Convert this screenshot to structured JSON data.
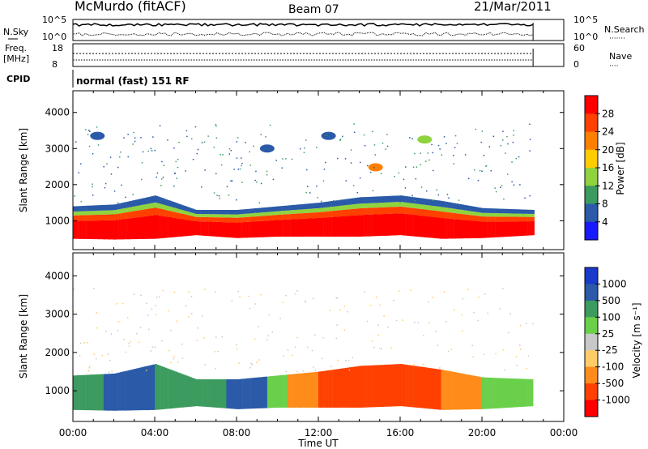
{
  "header": {
    "station": "McMurdo (fitACF)",
    "beam": "Beam 07",
    "date": "21/Mar/2011"
  },
  "noise_panel": {
    "left_label": "N.Sky",
    "right_label": "N.Search",
    "right_label_line": "·······",
    "left_ticks": [
      "10^5",
      "10^0"
    ],
    "right_ticks": [
      "10^5",
      "10^0"
    ]
  },
  "freq_panel": {
    "left_label_line1": "Freq.",
    "left_label_line2": "[MHz]",
    "left_ticks": [
      "18",
      "8"
    ],
    "right_label": "Nave",
    "right_label_line": "····",
    "right_ticks": [
      "60",
      "0"
    ]
  },
  "cpid": {
    "label": "CPID",
    "value": "normal (fast) 151 RF"
  },
  "chart_data": [
    {
      "type": "heatmap",
      "panel": "power",
      "xlabel": "Time UT",
      "ylabel": "Slant Range [km]",
      "xlim": [
        0,
        24
      ],
      "ylim": [
        200,
        4600
      ],
      "x_ticks": [
        "00:00",
        "04:00",
        "08:00",
        "12:00",
        "16:00",
        "20:00",
        "00:00"
      ],
      "y_ticks": [
        "1000",
        "2000",
        "3000",
        "4000"
      ],
      "colorbar": {
        "label": "Power [dB]",
        "ticks": [
          "28",
          "24",
          "20",
          "16",
          "12",
          "8",
          "4"
        ],
        "colors": [
          "#ff0000",
          "#ff4000",
          "#ff8000",
          "#ffcc00",
          "#8fd33f",
          "#3c9b5e",
          "#2a5aa8",
          "#1a1aff"
        ]
      },
      "bands": [
        {
          "t": 0.0,
          "lo": 500,
          "hi": 1400
        },
        {
          "t": 2.0,
          "lo": 480,
          "hi": 1450
        },
        {
          "t": 4.0,
          "lo": 500,
          "hi": 1700
        },
        {
          "t": 6.0,
          "lo": 600,
          "hi": 1300
        },
        {
          "t": 8.0,
          "lo": 520,
          "hi": 1300
        },
        {
          "t": 10.0,
          "lo": 560,
          "hi": 1400
        },
        {
          "t": 12.0,
          "lo": 560,
          "hi": 1500
        },
        {
          "t": 14.0,
          "lo": 560,
          "hi": 1650
        },
        {
          "t": 16.0,
          "lo": 600,
          "hi": 1700
        },
        {
          "t": 18.0,
          "lo": 500,
          "hi": 1550
        },
        {
          "t": 20.0,
          "lo": 520,
          "hi": 1350
        },
        {
          "t": 22.5,
          "lo": 600,
          "hi": 1300
        }
      ],
      "patches": [
        {
          "t": 14.8,
          "r": 2480,
          "v": 20
        },
        {
          "t": 12.5,
          "r": 3350,
          "v": 8
        },
        {
          "t": 9.5,
          "r": 3000,
          "v": 8
        },
        {
          "t": 1.2,
          "r": 3350,
          "v": 8
        },
        {
          "t": 17.2,
          "r": 3250,
          "v": 12
        }
      ]
    },
    {
      "type": "heatmap",
      "panel": "velocity",
      "xlabel": "Time UT",
      "ylabel": "Slant Range [km]",
      "xlim": [
        0,
        24
      ],
      "ylim": [
        200,
        4600
      ],
      "x_ticks": [
        "00:00",
        "04:00",
        "08:00",
        "12:00",
        "16:00",
        "20:00",
        "00:00"
      ],
      "y_ticks": [
        "1000",
        "2000",
        "3000",
        "4000"
      ],
      "colorbar": {
        "label": "Velocity [m s⁻¹]",
        "ticks": [
          "1000",
          "500",
          "100",
          "25",
          "-25",
          "-100",
          "-500",
          "-1000"
        ],
        "colors": [
          "#1a3acc",
          "#2a5aa8",
          "#3c9b5e",
          "#6ad04a",
          "#c8c8c8",
          "#ffcc66",
          "#ff8c1a",
          "#ff4000",
          "#ff0000"
        ]
      },
      "segments": [
        {
          "t0": 0.0,
          "t1": 1.5,
          "v": "100"
        },
        {
          "t0": 1.5,
          "t1": 4.0,
          "v": "500"
        },
        {
          "t0": 4.0,
          "t1": 7.5,
          "v": "100"
        },
        {
          "t0": 7.5,
          "t1": 9.5,
          "v": "500"
        },
        {
          "t0": 9.5,
          "t1": 10.5,
          "v": "25"
        },
        {
          "t0": 10.5,
          "t1": 12.0,
          "v": "-100"
        },
        {
          "t0": 12.0,
          "t1": 18.0,
          "v": "-500"
        },
        {
          "t0": 18.0,
          "t1": 20.0,
          "v": "-100"
        },
        {
          "t0": 20.0,
          "t1": 22.5,
          "v": "25"
        }
      ]
    }
  ]
}
